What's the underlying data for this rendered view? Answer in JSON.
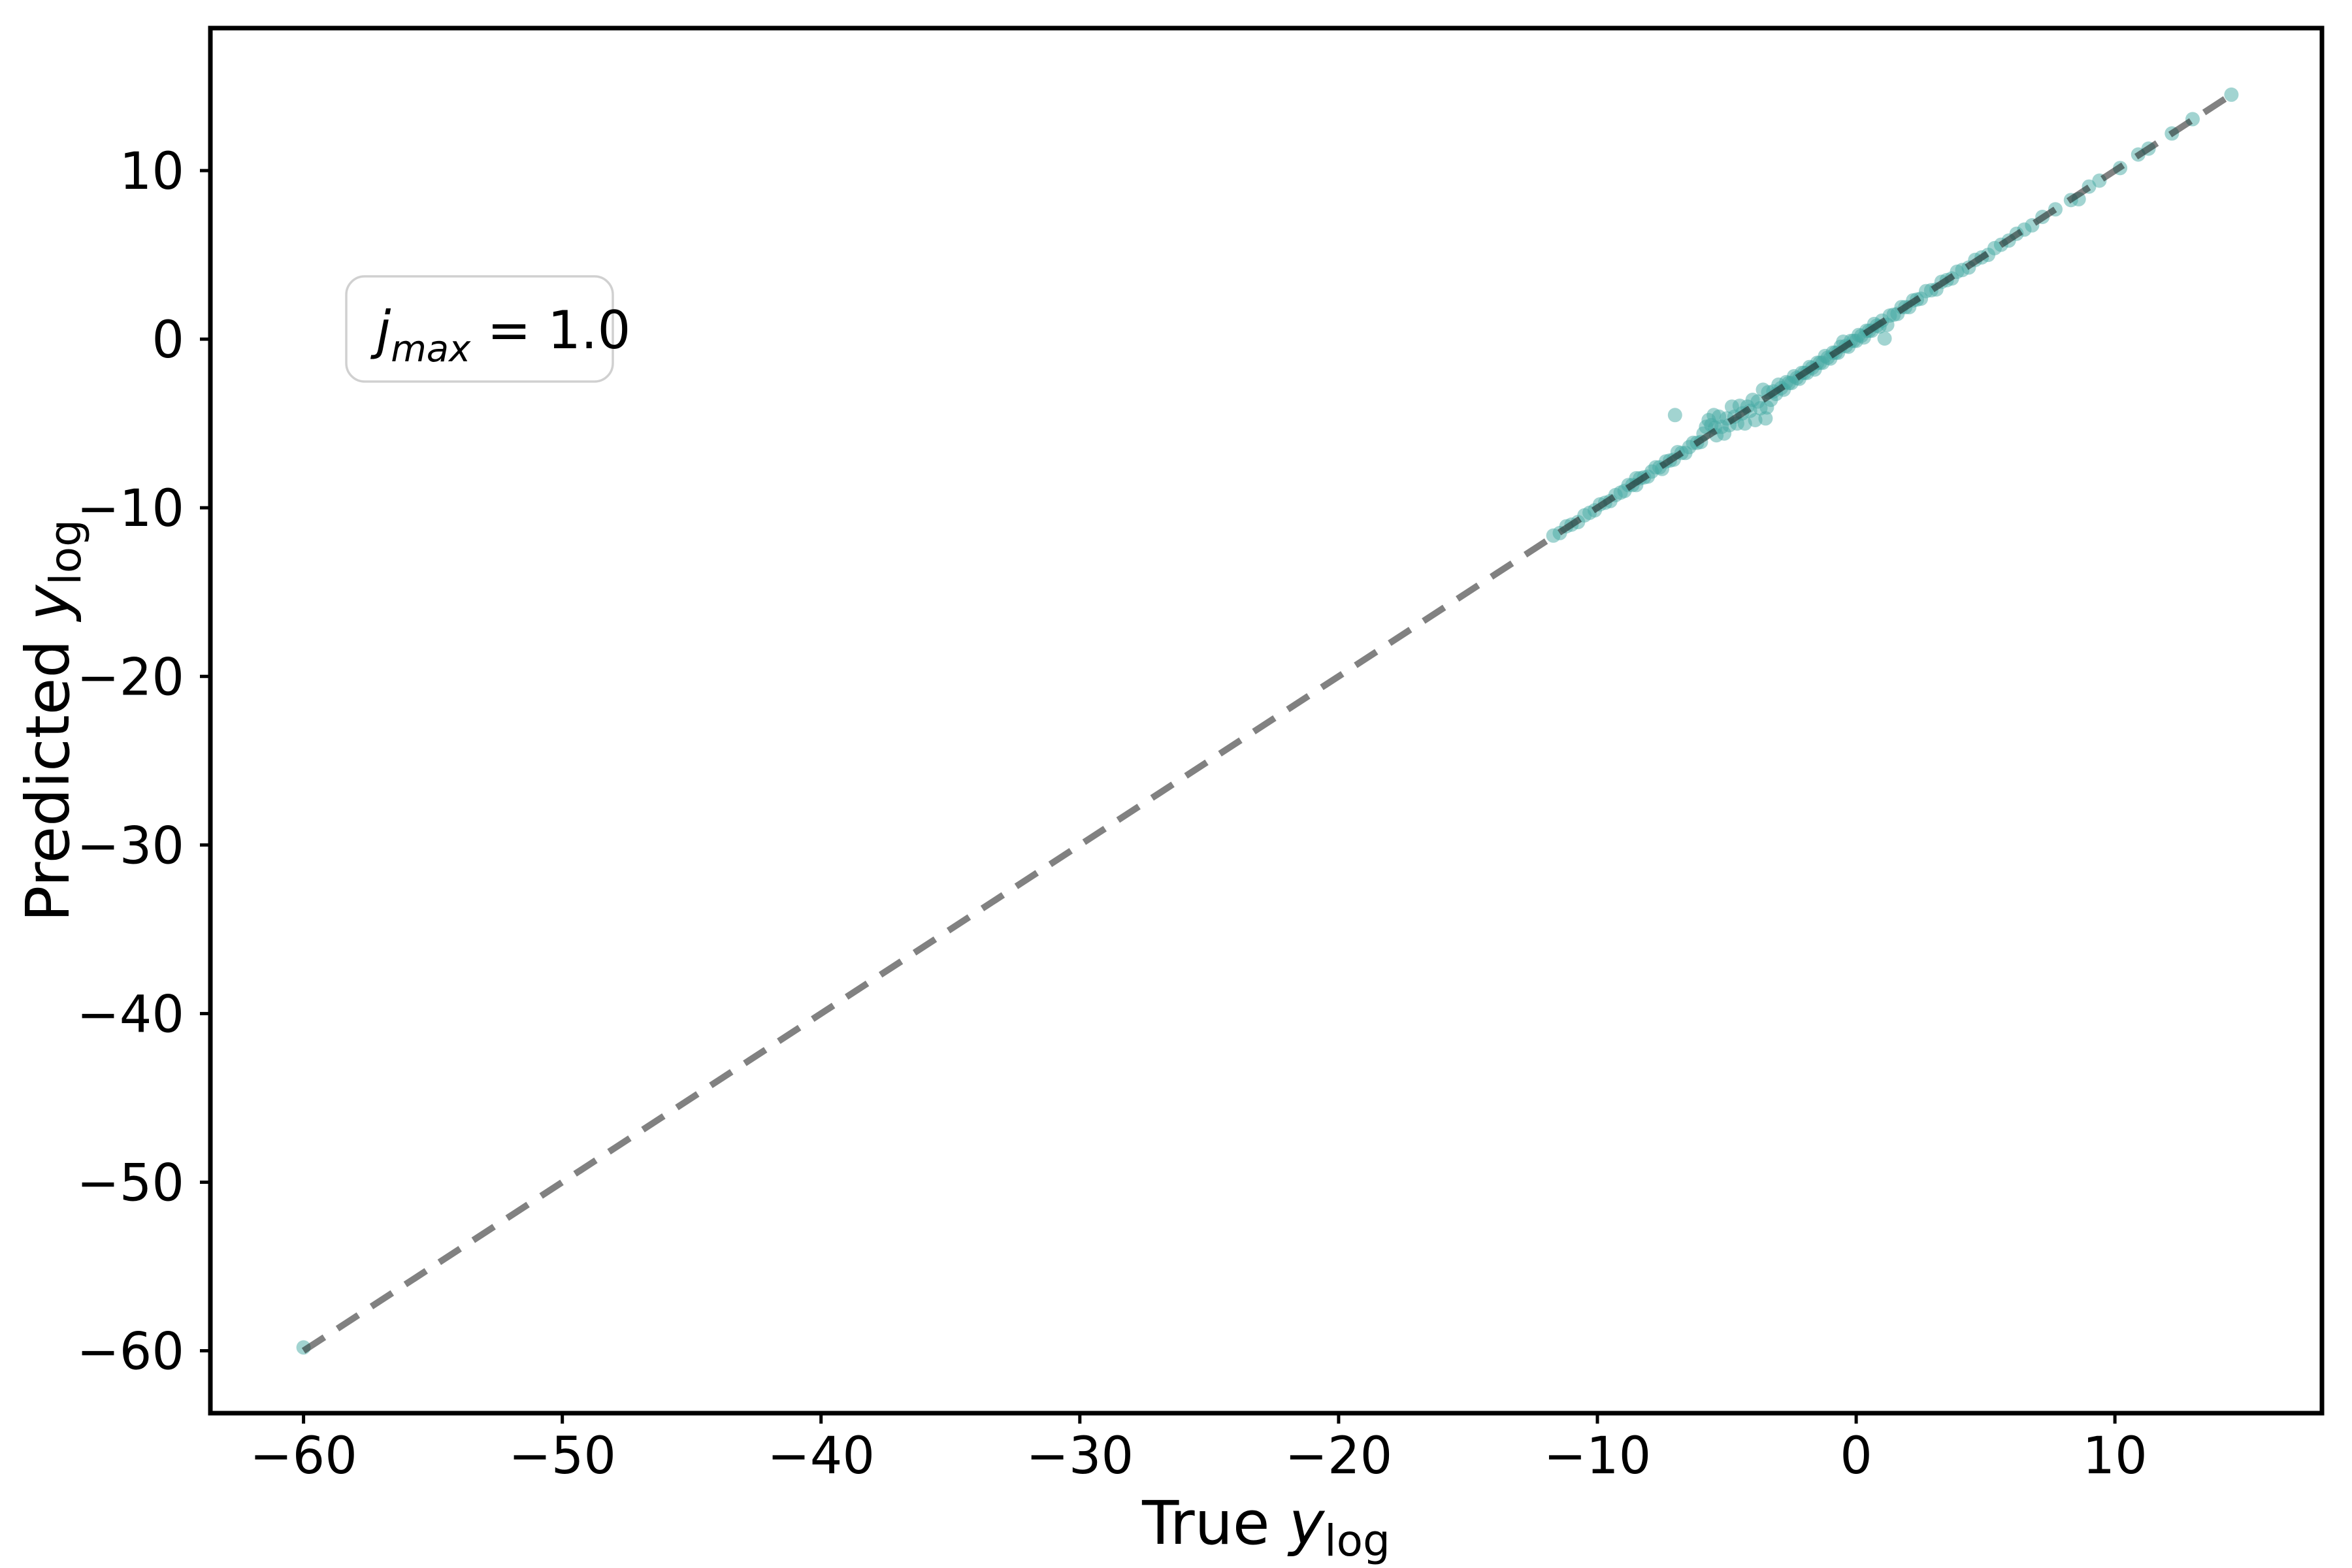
{
  "chart_data": {
    "type": "scatter",
    "title": "",
    "xlabel": "True y_log",
    "ylabel": "Predicted y_log",
    "xlabel_rich": {
      "prefix": "True ",
      "var": "y",
      "sub": "log"
    },
    "ylabel_rich": {
      "prefix": "Predicted ",
      "var": "y",
      "sub": "log"
    },
    "xlim": [
      -63.6,
      18.0
    ],
    "ylim": [
      -63.7,
      18.45
    ],
    "xticks": [
      -60,
      -50,
      -40,
      -30,
      -20,
      -10,
      0,
      10
    ],
    "yticks": [
      10,
      0,
      -10,
      -20,
      -30,
      -40,
      -50,
      -60
    ],
    "grid": false,
    "legend": "none",
    "annotation": {
      "var": "j",
      "sub": "max",
      "rest": " = 1.0",
      "display": "j_max = 1.0"
    },
    "identity_line": {
      "x": [
        -60,
        14.5
      ],
      "y": [
        -60,
        14.5
      ],
      "style": "dashed",
      "alpha": 0.55
    },
    "series": [
      {
        "name": "predictions",
        "color": "#46aaa4",
        "alpha": 0.5,
        "points": [
          [
            -11.7,
            -11.65
          ],
          [
            -11.45,
            -11.5
          ],
          [
            -11.2,
            -11.1
          ],
          [
            -11.0,
            -11.0
          ],
          [
            -10.75,
            -10.85
          ],
          [
            -10.5,
            -10.45
          ],
          [
            -10.3,
            -10.3
          ],
          [
            -10.1,
            -10.15
          ],
          [
            -9.9,
            -9.8
          ],
          [
            -9.7,
            -9.7
          ],
          [
            -9.5,
            -9.6
          ],
          [
            -9.3,
            -9.25
          ],
          [
            -9.1,
            -9.1
          ],
          [
            -8.95,
            -9.0
          ],
          [
            -8.8,
            -8.65
          ],
          [
            -8.65,
            -8.65
          ],
          [
            -8.5,
            -8.25
          ],
          [
            -8.5,
            -8.65
          ],
          [
            -8.35,
            -8.25
          ],
          [
            -8.2,
            -8.2
          ],
          [
            -8.05,
            -8.15
          ],
          [
            -7.9,
            -7.85
          ],
          [
            -7.75,
            -7.6
          ],
          [
            -7.6,
            -7.6
          ],
          [
            -7.5,
            -7.7
          ],
          [
            -7.35,
            -7.25
          ],
          [
            -7.2,
            -7.2
          ],
          [
            -7.05,
            -7.15
          ],
          [
            -6.9,
            -6.7
          ],
          [
            -6.75,
            -6.75
          ],
          [
            -6.6,
            -6.75
          ],
          [
            -6.45,
            -6.4
          ],
          [
            -6.3,
            -6.15
          ],
          [
            -6.15,
            -6.15
          ],
          [
            -6.0,
            -6.1
          ],
          [
            -5.9,
            -5.6
          ],
          [
            -5.8,
            -5.2
          ],
          [
            -5.7,
            -4.8
          ],
          [
            -5.6,
            -5.1
          ],
          [
            -5.5,
            -4.5
          ],
          [
            -5.45,
            -5.25
          ],
          [
            -5.4,
            -5.7
          ],
          [
            -5.3,
            -4.6
          ],
          [
            -5.2,
            -5.2
          ],
          [
            -5.1,
            -5.6
          ],
          [
            -5.0,
            -4.7
          ],
          [
            -4.9,
            -5.1
          ],
          [
            -4.8,
            -4.0
          ],
          [
            -4.7,
            -4.6
          ],
          [
            -4.6,
            -5.0
          ],
          [
            -4.5,
            -3.95
          ],
          [
            -4.4,
            -4.4
          ],
          [
            -4.3,
            -5.0
          ],
          [
            -4.2,
            -4.0
          ],
          [
            -4.1,
            -4.25
          ],
          [
            -4.0,
            -3.6
          ],
          [
            -3.9,
            -4.8
          ],
          [
            -3.8,
            -3.7
          ],
          [
            -3.7,
            -4.1
          ],
          [
            -3.6,
            -3.0
          ],
          [
            -3.5,
            -4.7
          ],
          [
            -3.45,
            -4.05
          ],
          [
            -3.4,
            -3.15
          ],
          [
            -3.3,
            -3.6
          ],
          [
            -3.2,
            -3.1
          ],
          [
            -3.1,
            -3.25
          ],
          [
            -3.0,
            -2.7
          ],
          [
            -2.9,
            -2.9
          ],
          [
            -2.8,
            -3.0
          ],
          [
            -2.7,
            -2.55
          ],
          [
            -2.6,
            -2.6
          ],
          [
            -2.5,
            -2.6
          ],
          [
            -2.4,
            -2.2
          ],
          [
            -2.3,
            -2.3
          ],
          [
            -2.2,
            -2.35
          ],
          [
            -2.1,
            -2.0
          ],
          [
            -2.0,
            -2.0
          ],
          [
            -1.9,
            -2.0
          ],
          [
            -1.8,
            -1.65
          ],
          [
            -1.7,
            -1.7
          ],
          [
            -1.6,
            -1.8
          ],
          [
            -1.5,
            -1.4
          ],
          [
            -1.4,
            -1.4
          ],
          [
            -1.3,
            -1.4
          ],
          [
            -1.2,
            -1.0
          ],
          [
            -1.1,
            -1.1
          ],
          [
            -1.0,
            -1.15
          ],
          [
            -0.9,
            -0.8
          ],
          [
            -0.8,
            -0.8
          ],
          [
            -0.7,
            -0.8
          ],
          [
            -0.6,
            -0.45
          ],
          [
            -0.5,
            -0.15
          ],
          [
            -0.4,
            -0.4
          ],
          [
            -0.3,
            -0.45
          ],
          [
            -0.2,
            -0.1
          ],
          [
            -0.1,
            -0.1
          ],
          [
            0.0,
            -0.1
          ],
          [
            0.1,
            0.25
          ],
          [
            0.2,
            0.2
          ],
          [
            0.3,
            0.1
          ],
          [
            0.4,
            0.5
          ],
          [
            0.5,
            0.5
          ],
          [
            0.6,
            0.5
          ],
          [
            0.7,
            0.9
          ],
          [
            0.8,
            0.8
          ],
          [
            0.9,
            0.75
          ],
          [
            1.0,
            1.1
          ],
          [
            1.1,
            0.04
          ],
          [
            1.2,
            0.85
          ],
          [
            1.3,
            1.4
          ],
          [
            1.45,
            1.45
          ],
          [
            1.6,
            1.5
          ],
          [
            1.75,
            1.9
          ],
          [
            1.9,
            1.9
          ],
          [
            2.05,
            1.9
          ],
          [
            2.2,
            2.3
          ],
          [
            2.35,
            2.35
          ],
          [
            2.5,
            2.4
          ],
          [
            2.7,
            2.85
          ],
          [
            2.9,
            2.9
          ],
          [
            3.1,
            2.95
          ],
          [
            3.3,
            3.4
          ],
          [
            3.5,
            3.5
          ],
          [
            3.7,
            3.6
          ],
          [
            3.9,
            4.0
          ],
          [
            4.1,
            4.1
          ],
          [
            4.35,
            4.25
          ],
          [
            4.6,
            4.7
          ],
          [
            4.85,
            4.85
          ],
          [
            5.1,
            5.0
          ],
          [
            5.35,
            5.4
          ],
          [
            5.6,
            5.6
          ],
          [
            5.9,
            5.85
          ],
          [
            6.2,
            6.25
          ],
          [
            6.5,
            6.5
          ],
          [
            6.8,
            6.75
          ],
          [
            7.2,
            7.25
          ],
          [
            7.7,
            7.7
          ],
          [
            8.3,
            8.25
          ],
          [
            8.6,
            8.3
          ],
          [
            9.0,
            9.05
          ],
          [
            9.4,
            9.4
          ],
          [
            10.2,
            10.15
          ],
          [
            10.9,
            10.95
          ],
          [
            11.3,
            11.3
          ],
          [
            12.2,
            12.2
          ],
          [
            13.0,
            13.05
          ],
          [
            14.5,
            14.5
          ],
          [
            -60.0,
            -59.8
          ],
          [
            -7.0,
            -4.5
          ]
        ]
      }
    ],
    "layout": {
      "axes": [
        322,
        43,
        3554,
        2163
      ],
      "tick_len": 16,
      "tick_w": 5,
      "spine_w": 7,
      "point_r": 11,
      "line_w": 10,
      "dash": "38 24",
      "tick_fs": 78,
      "label_fs": 92,
      "ann_fs": 80,
      "ann_box": [
        530,
        423,
        408,
        161
      ]
    }
  },
  "colors": {
    "scatter": "#46aaa4",
    "line": "#1a1a1a",
    "spine": "#000000",
    "text": "#000000",
    "annotation_border": "#d0d0d0",
    "background": "#ffffff"
  }
}
